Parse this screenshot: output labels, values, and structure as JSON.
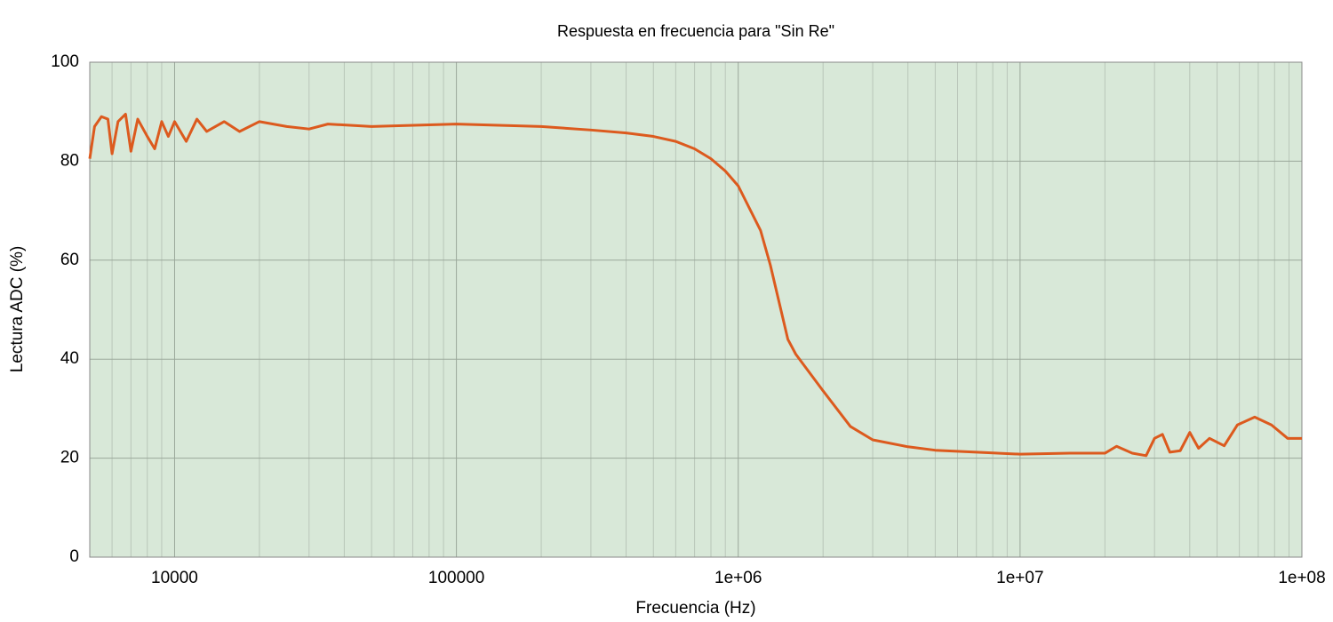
{
  "chart_data": {
    "type": "line",
    "title": "Respuesta en frecuencia para \"Sin Re\"",
    "x_label": "Frecuencia (Hz)",
    "y_label": "Lectura ADC (%)",
    "x_scale": "log",
    "xlim": [
      5000,
      100000000
    ],
    "xticks": [
      10000,
      100000,
      {
        "value": 1000000,
        "label": "1e+06"
      },
      {
        "value": 10000000,
        "label": "1e+07"
      },
      {
        "value": 100000000,
        "label": "1e+08"
      }
    ],
    "ylim": [
      0,
      100
    ],
    "yticks": [
      0,
      20,
      40,
      60,
      80,
      100
    ],
    "grid": true,
    "minor_grid": true,
    "background": "#d8e8d8",
    "series": [
      {
        "name": "Sin Re",
        "color": "#dc5a1e",
        "x": [
          5000,
          5200,
          5500,
          5800,
          6000,
          6300,
          6700,
          7000,
          7400,
          8000,
          8500,
          9000,
          9500,
          10000,
          11000,
          12000,
          13000,
          15000,
          17000,
          20000,
          25000,
          30000,
          35000,
          50000,
          100000,
          200000,
          300000,
          400000,
          500000,
          600000,
          700000,
          800000,
          900000,
          1000000,
          1200000,
          1300000,
          1500000,
          1600000,
          2000000,
          2500000,
          3000000,
          4000000,
          5000000,
          7000000,
          10000000,
          15000000,
          20000000,
          22000000,
          25000000,
          28000000,
          30000000,
          32000000,
          34000000,
          37000000,
          40000000,
          43000000,
          47000000,
          53000000,
          59000000,
          68000000,
          78000000,
          89000000,
          100000000
        ],
        "values": [
          80.5,
          87,
          89,
          88.5,
          81.5,
          88,
          89.5,
          82,
          88.5,
          85,
          82.5,
          88,
          85,
          88,
          84,
          88.5,
          86,
          88,
          86,
          88,
          87,
          86.5,
          87.5,
          87,
          87.5,
          87,
          86.3,
          85.7,
          85,
          84,
          82.5,
          80.5,
          78,
          75,
          66,
          59,
          44,
          41,
          33.6,
          26.4,
          23.7,
          22.3,
          21.6,
          21.2,
          20.8,
          21,
          21,
          22.4,
          21,
          20.5,
          24,
          24.8,
          21.2,
          21.5,
          25.2,
          22,
          24,
          22.5,
          26.7,
          28.3,
          26.7,
          24,
          24
        ]
      }
    ]
  }
}
